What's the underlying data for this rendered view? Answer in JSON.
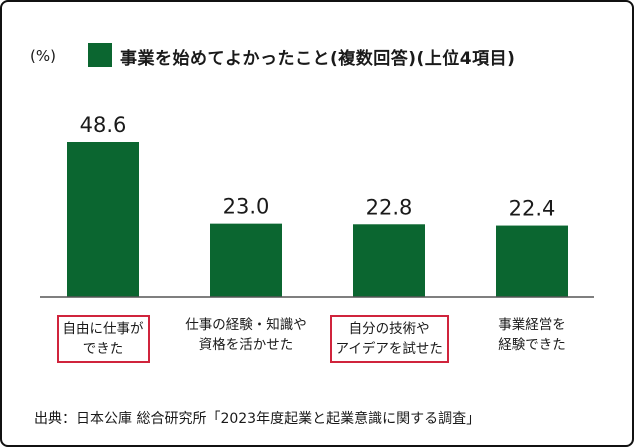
{
  "unit_label": "(%)",
  "legend_color": "#0b6630",
  "highlight_color": "#d0243c",
  "chart_data": {
    "type": "bar",
    "title": "事業を始めてよかったこと(複数回答)(上位4項目)",
    "categories": [
      "自由に仕事が\nできた",
      "仕事の経験・知識や\n資格を活かせた",
      "自分の技術や\nアイデアを試せた",
      "事業経営を\n経験できた"
    ],
    "values": [
      48.6,
      23.0,
      22.8,
      22.4
    ],
    "value_labels": [
      "48.6",
      "23.0",
      "22.8",
      "22.4"
    ],
    "highlighted": [
      true,
      false,
      true,
      false
    ],
    "ylabel": "(%)",
    "ylim": [
      0,
      50
    ],
    "grid": false,
    "legend": "top-left",
    "bar_color": "#0b6630"
  },
  "source": "出典：日本公庫 総合研究所「2023年度起業と起業意識に関する調査」"
}
